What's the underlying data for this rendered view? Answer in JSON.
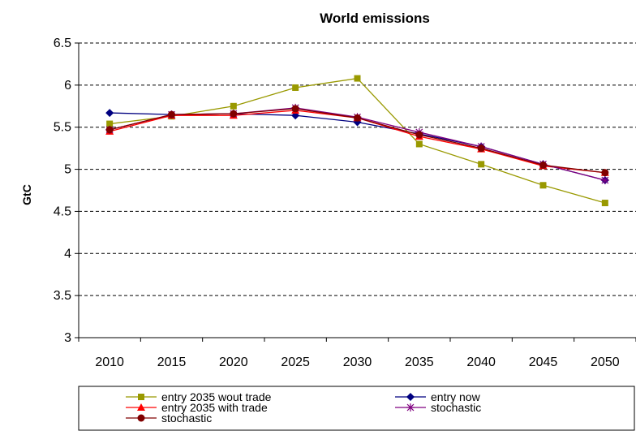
{
  "chart_data": {
    "type": "line",
    "title": "World emissions",
    "xlabel": "",
    "ylabel": "GtC",
    "categories": [
      "2010",
      "2015",
      "2020",
      "2025",
      "2030",
      "2035",
      "2040",
      "2045",
      "2050"
    ],
    "ylim": [
      3,
      6.5
    ],
    "yticks": [
      "3",
      "3.5",
      "4",
      "4.5",
      "5",
      "5.5",
      "6",
      "6.5"
    ],
    "grid": true,
    "legend_position": "bottom",
    "series": [
      {
        "name": "entry 2035 wout trade",
        "marker": "square",
        "color": "#999900",
        "values": [
          5.54,
          5.63,
          5.75,
          5.97,
          6.08,
          5.3,
          5.06,
          4.81,
          4.6
        ]
      },
      {
        "name": "entry now",
        "marker": "diamond",
        "color": "#000080",
        "values": [
          5.67,
          5.65,
          5.66,
          5.64,
          5.56,
          5.42,
          5.27,
          5.06,
          4.87
        ]
      },
      {
        "name": "entry 2035 with trade",
        "marker": "triangle",
        "color": "#ff0000",
        "values": [
          5.45,
          5.64,
          5.64,
          5.7,
          5.61,
          5.39,
          5.24,
          5.04,
          4.96
        ]
      },
      {
        "name": "stochastic",
        "marker": "star",
        "color": "#800080",
        "values": [
          5.47,
          5.65,
          5.66,
          5.73,
          5.62,
          5.44,
          5.27,
          5.06,
          4.87
        ]
      },
      {
        "name": "stochastic",
        "marker": "circle",
        "color": "#800000",
        "values": [
          5.47,
          5.65,
          5.66,
          5.72,
          5.61,
          5.41,
          5.25,
          5.05,
          4.96
        ]
      }
    ]
  }
}
